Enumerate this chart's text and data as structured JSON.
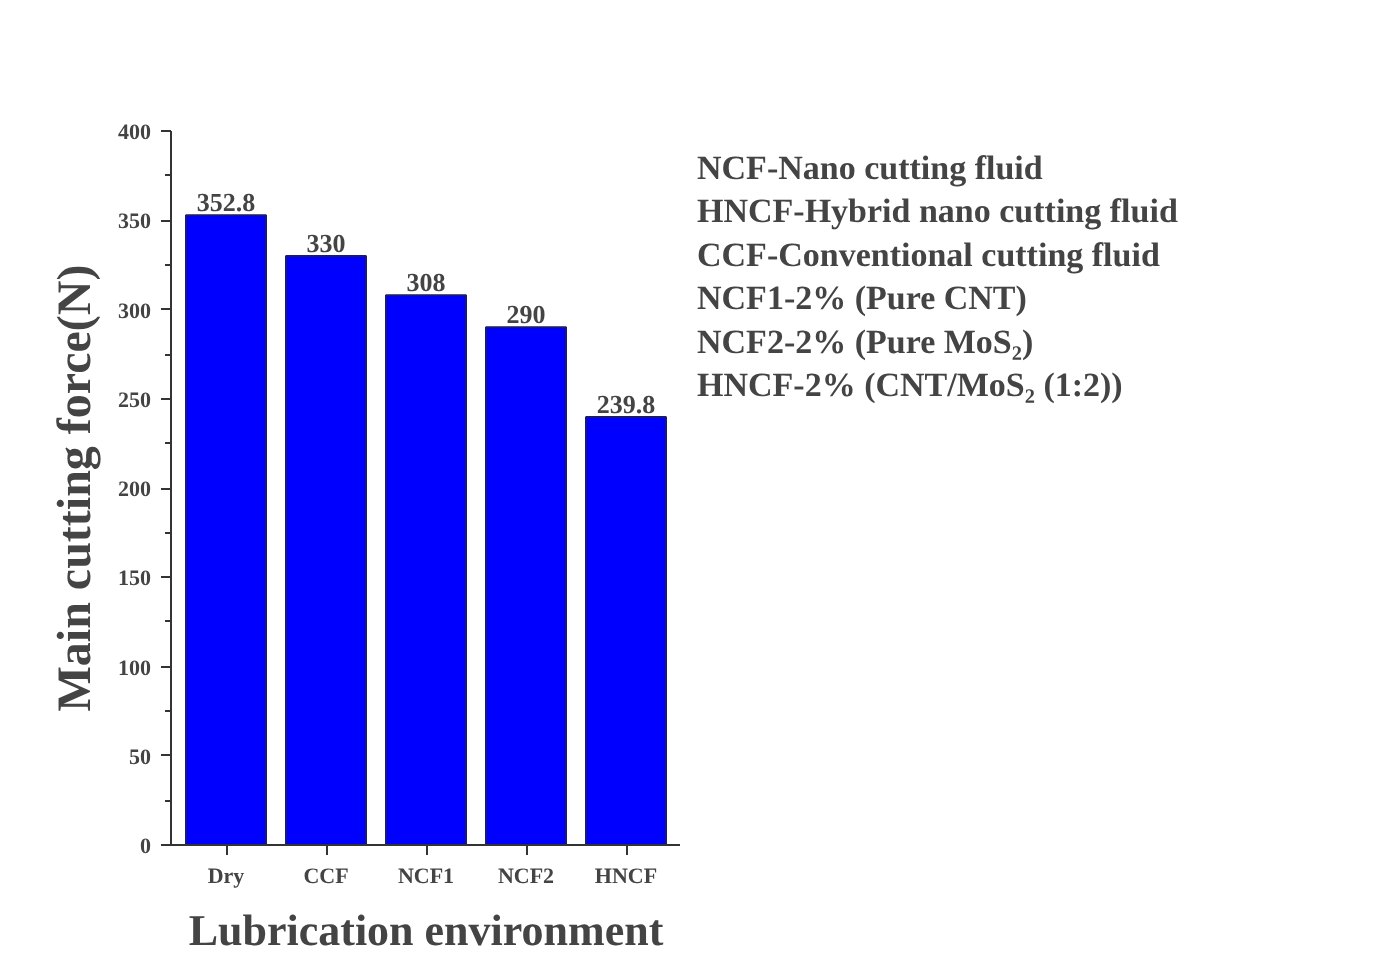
{
  "chart_data": {
    "type": "bar",
    "xlabel": "Lubrication environment",
    "ylabel": "Main cutting force(N)",
    "categories": [
      "Dry",
      "CCF",
      "NCF1",
      "NCF2",
      "HNCF"
    ],
    "values": [
      352.8,
      330,
      308,
      290,
      239.8
    ],
    "color": "#0000ff",
    "data_labels": true,
    "ylim": [
      0,
      400
    ],
    "yticks": [
      0,
      50,
      100,
      150,
      200,
      250,
      300,
      350,
      400
    ],
    "grid": false,
    "annotations": [
      "NCF-Nano cutting fluid",
      "HNCF-Hybrid nano cutting fluid",
      "CCF-Conventional cutting fluid",
      "NCF1-2% (Pure CNT)",
      "NCF2-2% (Pure MoS₂)",
      "HNCF-2% (CNT/MoS₂ (1:2))"
    ]
  }
}
